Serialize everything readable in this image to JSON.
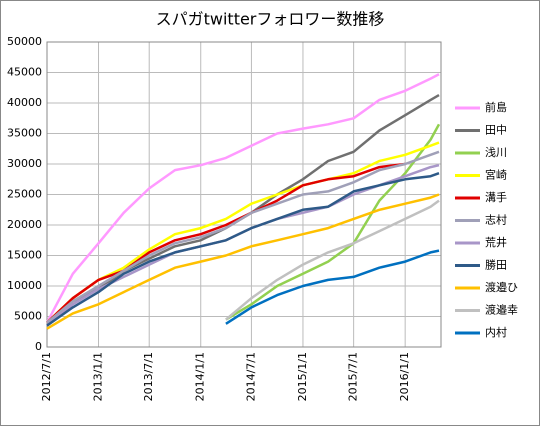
{
  "chart_data": {
    "type": "line",
    "title": "スパガtwitterフォロワー数推移",
    "x": [
      "2012/7/1",
      "2012/10/1",
      "2013/1/1",
      "2013/4/1",
      "2013/7/1",
      "2013/10/1",
      "2014/1/1",
      "2014/4/1",
      "2014/7/1",
      "2014/10/1",
      "2015/1/1",
      "2015/4/1",
      "2015/7/1",
      "2015/10/1",
      "2016/1/1",
      "2016/4/1",
      "2016/5/1"
    ],
    "xlim": [
      "2012/7/1",
      "2016/5/8"
    ],
    "xticks": [
      "2012/7/1",
      "2013/1/1",
      "2013/7/1",
      "2014/1/1",
      "2014/7/1",
      "2015/1/1",
      "2015/7/1",
      "2016/1/1"
    ],
    "ylim": [
      0,
      50000
    ],
    "yticks": [
      0,
      5000,
      10000,
      15000,
      20000,
      25000,
      30000,
      35000,
      40000,
      45000,
      50000
    ],
    "grid": true,
    "legend": "right",
    "series": [
      {
        "name": "前島",
        "color": "#ff99ff",
        "values": [
          4000,
          12000,
          17000,
          22000,
          26000,
          29000,
          29800,
          31000,
          33000,
          35000,
          35800,
          36500,
          37500,
          40500,
          42000,
          44000,
          44700
        ]
      },
      {
        "name": "田中",
        "color": "#707070",
        "values": [
          4000,
          7500,
          9500,
          12500,
          14500,
          16500,
          17500,
          19500,
          22000,
          25000,
          27500,
          30500,
          32000,
          35500,
          38000,
          40500,
          41300
        ]
      },
      {
        "name": "浅川",
        "color": "#92d050",
        "values": [
          null,
          null,
          null,
          null,
          null,
          null,
          null,
          4500,
          7000,
          10000,
          12000,
          14000,
          17000,
          24000,
          28500,
          34000,
          36500
        ]
      },
      {
        "name": "宮崎",
        "color": "#ffff00",
        "values": [
          4000,
          8000,
          11000,
          13000,
          16000,
          18500,
          19500,
          21000,
          23500,
          25000,
          26500,
          27500,
          28500,
          30500,
          31500,
          33000,
          33500
        ]
      },
      {
        "name": "溝手",
        "color": "#e00000",
        "values": [
          4000,
          8000,
          11000,
          12500,
          15500,
          17500,
          18500,
          20000,
          22000,
          24000,
          26500,
          27500,
          28000,
          29500,
          30000,
          null,
          null
        ]
      },
      {
        "name": "志村",
        "color": "#a0a0b8",
        "values": [
          4000,
          7500,
          10000,
          12500,
          15000,
          17000,
          18000,
          19500,
          22000,
          23500,
          25000,
          25500,
          27000,
          29000,
          30000,
          31500,
          32000
        ]
      },
      {
        "name": "荒井",
        "color": "#a896c8",
        "values": [
          3500,
          7000,
          9500,
          11500,
          13500,
          15500,
          16500,
          17500,
          19500,
          21000,
          22000,
          23000,
          25000,
          26500,
          28000,
          29500,
          29800
        ]
      },
      {
        "name": "勝田",
        "color": "#2e5a88",
        "values": [
          3500,
          6500,
          9000,
          12000,
          14000,
          15500,
          16500,
          17500,
          19500,
          21000,
          22500,
          23000,
          25500,
          26500,
          27500,
          28000,
          28500
        ]
      },
      {
        "name": "渡邉ひ",
        "color": "#ffc000",
        "values": [
          3000,
          5500,
          7000,
          9000,
          11000,
          13000,
          14000,
          15000,
          16500,
          17500,
          18500,
          19500,
          21000,
          22500,
          23500,
          24500,
          25000
        ]
      },
      {
        "name": "渡邉幸",
        "color": "#c0c0c0",
        "values": [
          null,
          null,
          null,
          null,
          null,
          null,
          null,
          4500,
          8000,
          11000,
          13500,
          15500,
          17000,
          19000,
          21000,
          23000,
          24000
        ]
      },
      {
        "name": "内村",
        "color": "#0070c0",
        "values": [
          null,
          null,
          null,
          null,
          null,
          null,
          null,
          3800,
          6500,
          8500,
          10000,
          11000,
          11500,
          13000,
          14000,
          15500,
          15800
        ]
      }
    ]
  }
}
